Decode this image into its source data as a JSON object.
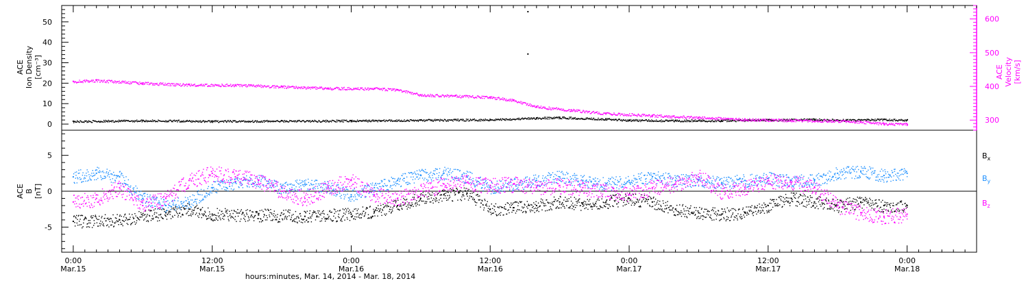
{
  "chart_data": [
    {
      "type": "scatter",
      "panel": "top",
      "ylabel_left": [
        "ACE",
        "Ion Density",
        "[cm⁻³]"
      ],
      "ylabel_right": [
        "ACE",
        "Velocity",
        "[km/s]"
      ],
      "y_left_range": [
        -3,
        58
      ],
      "y_left_ticks": [
        "0",
        "10",
        "20",
        "30",
        "40",
        "50"
      ],
      "y_right_range": [
        270,
        640
      ],
      "y_right_ticks": [
        "300",
        "400",
        "500",
        "600"
      ],
      "series": [
        {
          "name": "Ion Density",
          "axis": "left",
          "color": "#000000",
          "points": [
            [
              0,
              1.4
            ],
            [
              6,
              1.8
            ],
            [
              12,
              1.5
            ],
            [
              18,
              1.6
            ],
            [
              24,
              1.7
            ],
            [
              30,
              2.0
            ],
            [
              36,
              2.3
            ],
            [
              40,
              3.0
            ],
            [
              42,
              3.3
            ],
            [
              46,
              2.6
            ],
            [
              48,
              2.0
            ],
            [
              52,
              1.8
            ],
            [
              56,
              1.8
            ],
            [
              60,
              2.1
            ],
            [
              64,
              2.4
            ],
            [
              66,
              2.0
            ],
            [
              70,
              2.3
            ],
            [
              72,
              2.0
            ]
          ],
          "outliers": [
            [
              39.2,
              55.3
            ],
            [
              39.2,
              34.6
            ]
          ]
        },
        {
          "name": "Velocity",
          "axis": "right",
          "color": "#ff00ff",
          "points": [
            [
              0,
              415
            ],
            [
              2,
              418
            ],
            [
              6,
              410
            ],
            [
              10,
              405
            ],
            [
              14,
              404
            ],
            [
              18,
              400
            ],
            [
              22,
              395
            ],
            [
              26,
              394
            ],
            [
              28,
              390
            ],
            [
              30,
              375
            ],
            [
              33,
              372
            ],
            [
              36,
              368
            ],
            [
              38,
              360
            ],
            [
              40,
              340
            ],
            [
              43,
              330
            ],
            [
              46,
              320
            ],
            [
              50,
              314
            ],
            [
              54,
              308
            ],
            [
              58,
              302
            ],
            [
              62,
              300
            ],
            [
              66,
              298
            ],
            [
              68,
              295
            ],
            [
              70,
              290
            ],
            [
              72,
              288
            ]
          ]
        }
      ]
    },
    {
      "type": "scatter",
      "panel": "bottom",
      "ylabel": [
        "ACE",
        "B",
        "[nT]"
      ],
      "y_range": [
        -8.5,
        8.5
      ],
      "y_ticks": [
        "-5",
        "0",
        "5"
      ],
      "series": [
        {
          "name": "Bx",
          "color": "#000000",
          "points": [
            [
              0,
              -4.2
            ],
            [
              4,
              -4.0
            ],
            [
              8,
              -3.0
            ],
            [
              10,
              -2.5
            ],
            [
              12,
              -3.2
            ],
            [
              16,
              -3.3
            ],
            [
              20,
              -3.5
            ],
            [
              24,
              -3.2
            ],
            [
              26,
              -2.8
            ],
            [
              28,
              -2.0
            ],
            [
              30,
              -1.0
            ],
            [
              32,
              -0.5
            ],
            [
              34,
              -0.3
            ],
            [
              36,
              -2.5
            ],
            [
              38,
              -2.3
            ],
            [
              40,
              -2.0
            ],
            [
              42,
              -1.5
            ],
            [
              44,
              -1.8
            ],
            [
              46,
              -1.5
            ],
            [
              48,
              -1.0
            ],
            [
              50,
              -1.5
            ],
            [
              52,
              -2.5
            ],
            [
              54,
              -3.0
            ],
            [
              56,
              -3.2
            ],
            [
              58,
              -3.0
            ],
            [
              60,
              -2.0
            ],
            [
              62,
              -1.0
            ],
            [
              64,
              -1.5
            ],
            [
              66,
              -2.0
            ],
            [
              68,
              -1.5
            ],
            [
              70,
              -2.0
            ],
            [
              72,
              -2.0
            ]
          ]
        },
        {
          "name": "By",
          "color": "#1e90ff",
          "points": [
            [
              0,
              2.0
            ],
            [
              2,
              2.5
            ],
            [
              4,
              2.0
            ],
            [
              6,
              -1.0
            ],
            [
              8,
              -2.0
            ],
            [
              10,
              -1.5
            ],
            [
              12,
              0.5
            ],
            [
              14,
              1.2
            ],
            [
              16,
              1.5
            ],
            [
              18,
              0.5
            ],
            [
              20,
              1.0
            ],
            [
              22,
              0.5
            ],
            [
              24,
              -0.5
            ],
            [
              26,
              0.5
            ],
            [
              28,
              1.5
            ],
            [
              30,
              2.2
            ],
            [
              32,
              2.5
            ],
            [
              34,
              2.0
            ],
            [
              36,
              0.5
            ],
            [
              38,
              1.0
            ],
            [
              40,
              1.5
            ],
            [
              42,
              2.0
            ],
            [
              44,
              1.5
            ],
            [
              46,
              1.0
            ],
            [
              48,
              1.5
            ],
            [
              50,
              2.0
            ],
            [
              52,
              1.5
            ],
            [
              54,
              1.5
            ],
            [
              56,
              1.2
            ],
            [
              58,
              1.5
            ],
            [
              60,
              1.8
            ],
            [
              62,
              1.5
            ],
            [
              64,
              1.5
            ],
            [
              66,
              2.5
            ],
            [
              68,
              2.8
            ],
            [
              70,
              2.2
            ],
            [
              72,
              2.5
            ]
          ]
        },
        {
          "name": "Bz",
          "color": "#ff00ff",
          "points": [
            [
              0,
              -1.5
            ],
            [
              2,
              -1.0
            ],
            [
              4,
              0.5
            ],
            [
              6,
              -2.0
            ],
            [
              8,
              -1.0
            ],
            [
              10,
              1.5
            ],
            [
              12,
              2.5
            ],
            [
              14,
              2.0
            ],
            [
              16,
              1.5
            ],
            [
              18,
              0.0
            ],
            [
              20,
              -1.0
            ],
            [
              22,
              0.5
            ],
            [
              24,
              1.5
            ],
            [
              26,
              -0.5
            ],
            [
              28,
              -1.0
            ],
            [
              30,
              0.0
            ],
            [
              32,
              1.0
            ],
            [
              34,
              1.2
            ],
            [
              36,
              0.8
            ],
            [
              38,
              1.0
            ],
            [
              40,
              0.5
            ],
            [
              42,
              0.8
            ],
            [
              44,
              0.5
            ],
            [
              46,
              0.0
            ],
            [
              48,
              -0.5
            ],
            [
              50,
              0.5
            ],
            [
              52,
              1.0
            ],
            [
              54,
              2.0
            ],
            [
              56,
              0.0
            ],
            [
              58,
              0.5
            ],
            [
              60,
              1.5
            ],
            [
              62,
              1.2
            ],
            [
              64,
              0.5
            ],
            [
              66,
              -2.0
            ],
            [
              68,
              -3.0
            ],
            [
              70,
              -3.5
            ],
            [
              72,
              -3.2
            ]
          ]
        }
      ],
      "legend": [
        {
          "base": "B",
          "sub": "x",
          "color": "#000000"
        },
        {
          "base": "B",
          "sub": "y",
          "color": "#1e90ff"
        },
        {
          "base": "B",
          "sub": "z",
          "color": "#ff00ff"
        }
      ]
    }
  ],
  "x_axis": {
    "range_hours": [
      -1,
      78
    ],
    "tick_hours": [
      0,
      12,
      24,
      36,
      48,
      60,
      72
    ],
    "tick_labels": [
      [
        "0:00",
        "Mar.15"
      ],
      [
        "12:00",
        "Mar.15"
      ],
      [
        "0:00",
        "Mar.16"
      ],
      [
        "12:00",
        "Mar.16"
      ],
      [
        "0:00",
        "Mar.17"
      ],
      [
        "12:00",
        "Mar.17"
      ],
      [
        "0:00",
        "Mar.18"
      ]
    ],
    "xlabel": "hours:minutes, Mar. 14, 2014 - Mar. 18, 2014"
  },
  "colors": {
    "density": "#000000",
    "velocity": "#ff00ff",
    "bx": "#000000",
    "by": "#1e90ff",
    "bz": "#ff00ff"
  }
}
